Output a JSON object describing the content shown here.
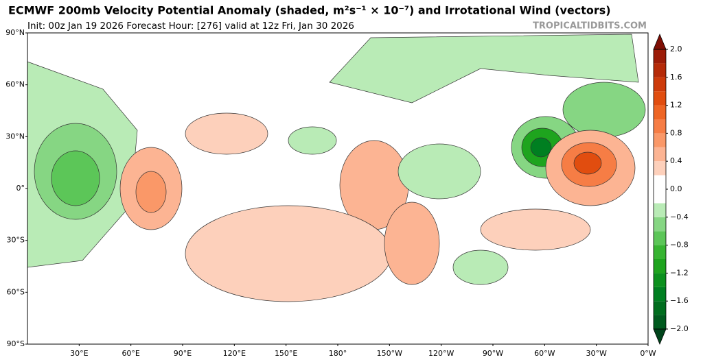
{
  "header": {
    "title": "ECMWF 200mb Velocity Potential Anomaly (shaded, m²s⁻¹ × 10⁻⁷) and Irrotational Wind (vectors)",
    "subtitle": "Init: 00z Jan 19 2026   Forecast Hour: [276]   valid at 12z Fri, Jan 30 2026",
    "credit": "TROPICALTIDBITS.COM"
  },
  "map": {
    "lat_labels": [
      "90°N",
      "60°N",
      "30°N",
      "0°",
      "30°S",
      "60°S",
      "90°S"
    ],
    "lon_labels": [
      "30°E",
      "60°E",
      "90°E",
      "120°E",
      "150°E",
      "180°",
      "150°W",
      "120°W",
      "90°W",
      "60°W",
      "30°W",
      "0°W"
    ]
  },
  "colorbar": {
    "ticks": [
      {
        "value": 2.0,
        "label": "2.0"
      },
      {
        "value": 1.6,
        "label": "1.6"
      },
      {
        "value": 1.2,
        "label": "1.2"
      },
      {
        "value": 0.8,
        "label": "0.8"
      },
      {
        "value": 0.4,
        "label": "0.4"
      },
      {
        "value": 0.0,
        "label": "0.0"
      },
      {
        "value": -0.4,
        "label": "−0.4"
      },
      {
        "value": -0.8,
        "label": "−0.8"
      },
      {
        "value": -1.2,
        "label": "−1.2"
      },
      {
        "value": -1.6,
        "label": "−1.6"
      },
      {
        "value": -2.0,
        "label": "−2.0"
      }
    ],
    "colors": [
      "#00441b",
      "#005a1e",
      "#006d1e",
      "#007f21",
      "#0c911e",
      "#1ea41e",
      "#37b432",
      "#5cc658",
      "#86d683",
      "#b9ebb6",
      "#ffffff",
      "#ffffff",
      "#fdd0bb",
      "#fcb493",
      "#fa9868",
      "#f67d45",
      "#ee6524",
      "#e14d0f",
      "#cd3a0a",
      "#b52a08",
      "#9c1c08",
      "#7f0f05"
    ]
  }
}
